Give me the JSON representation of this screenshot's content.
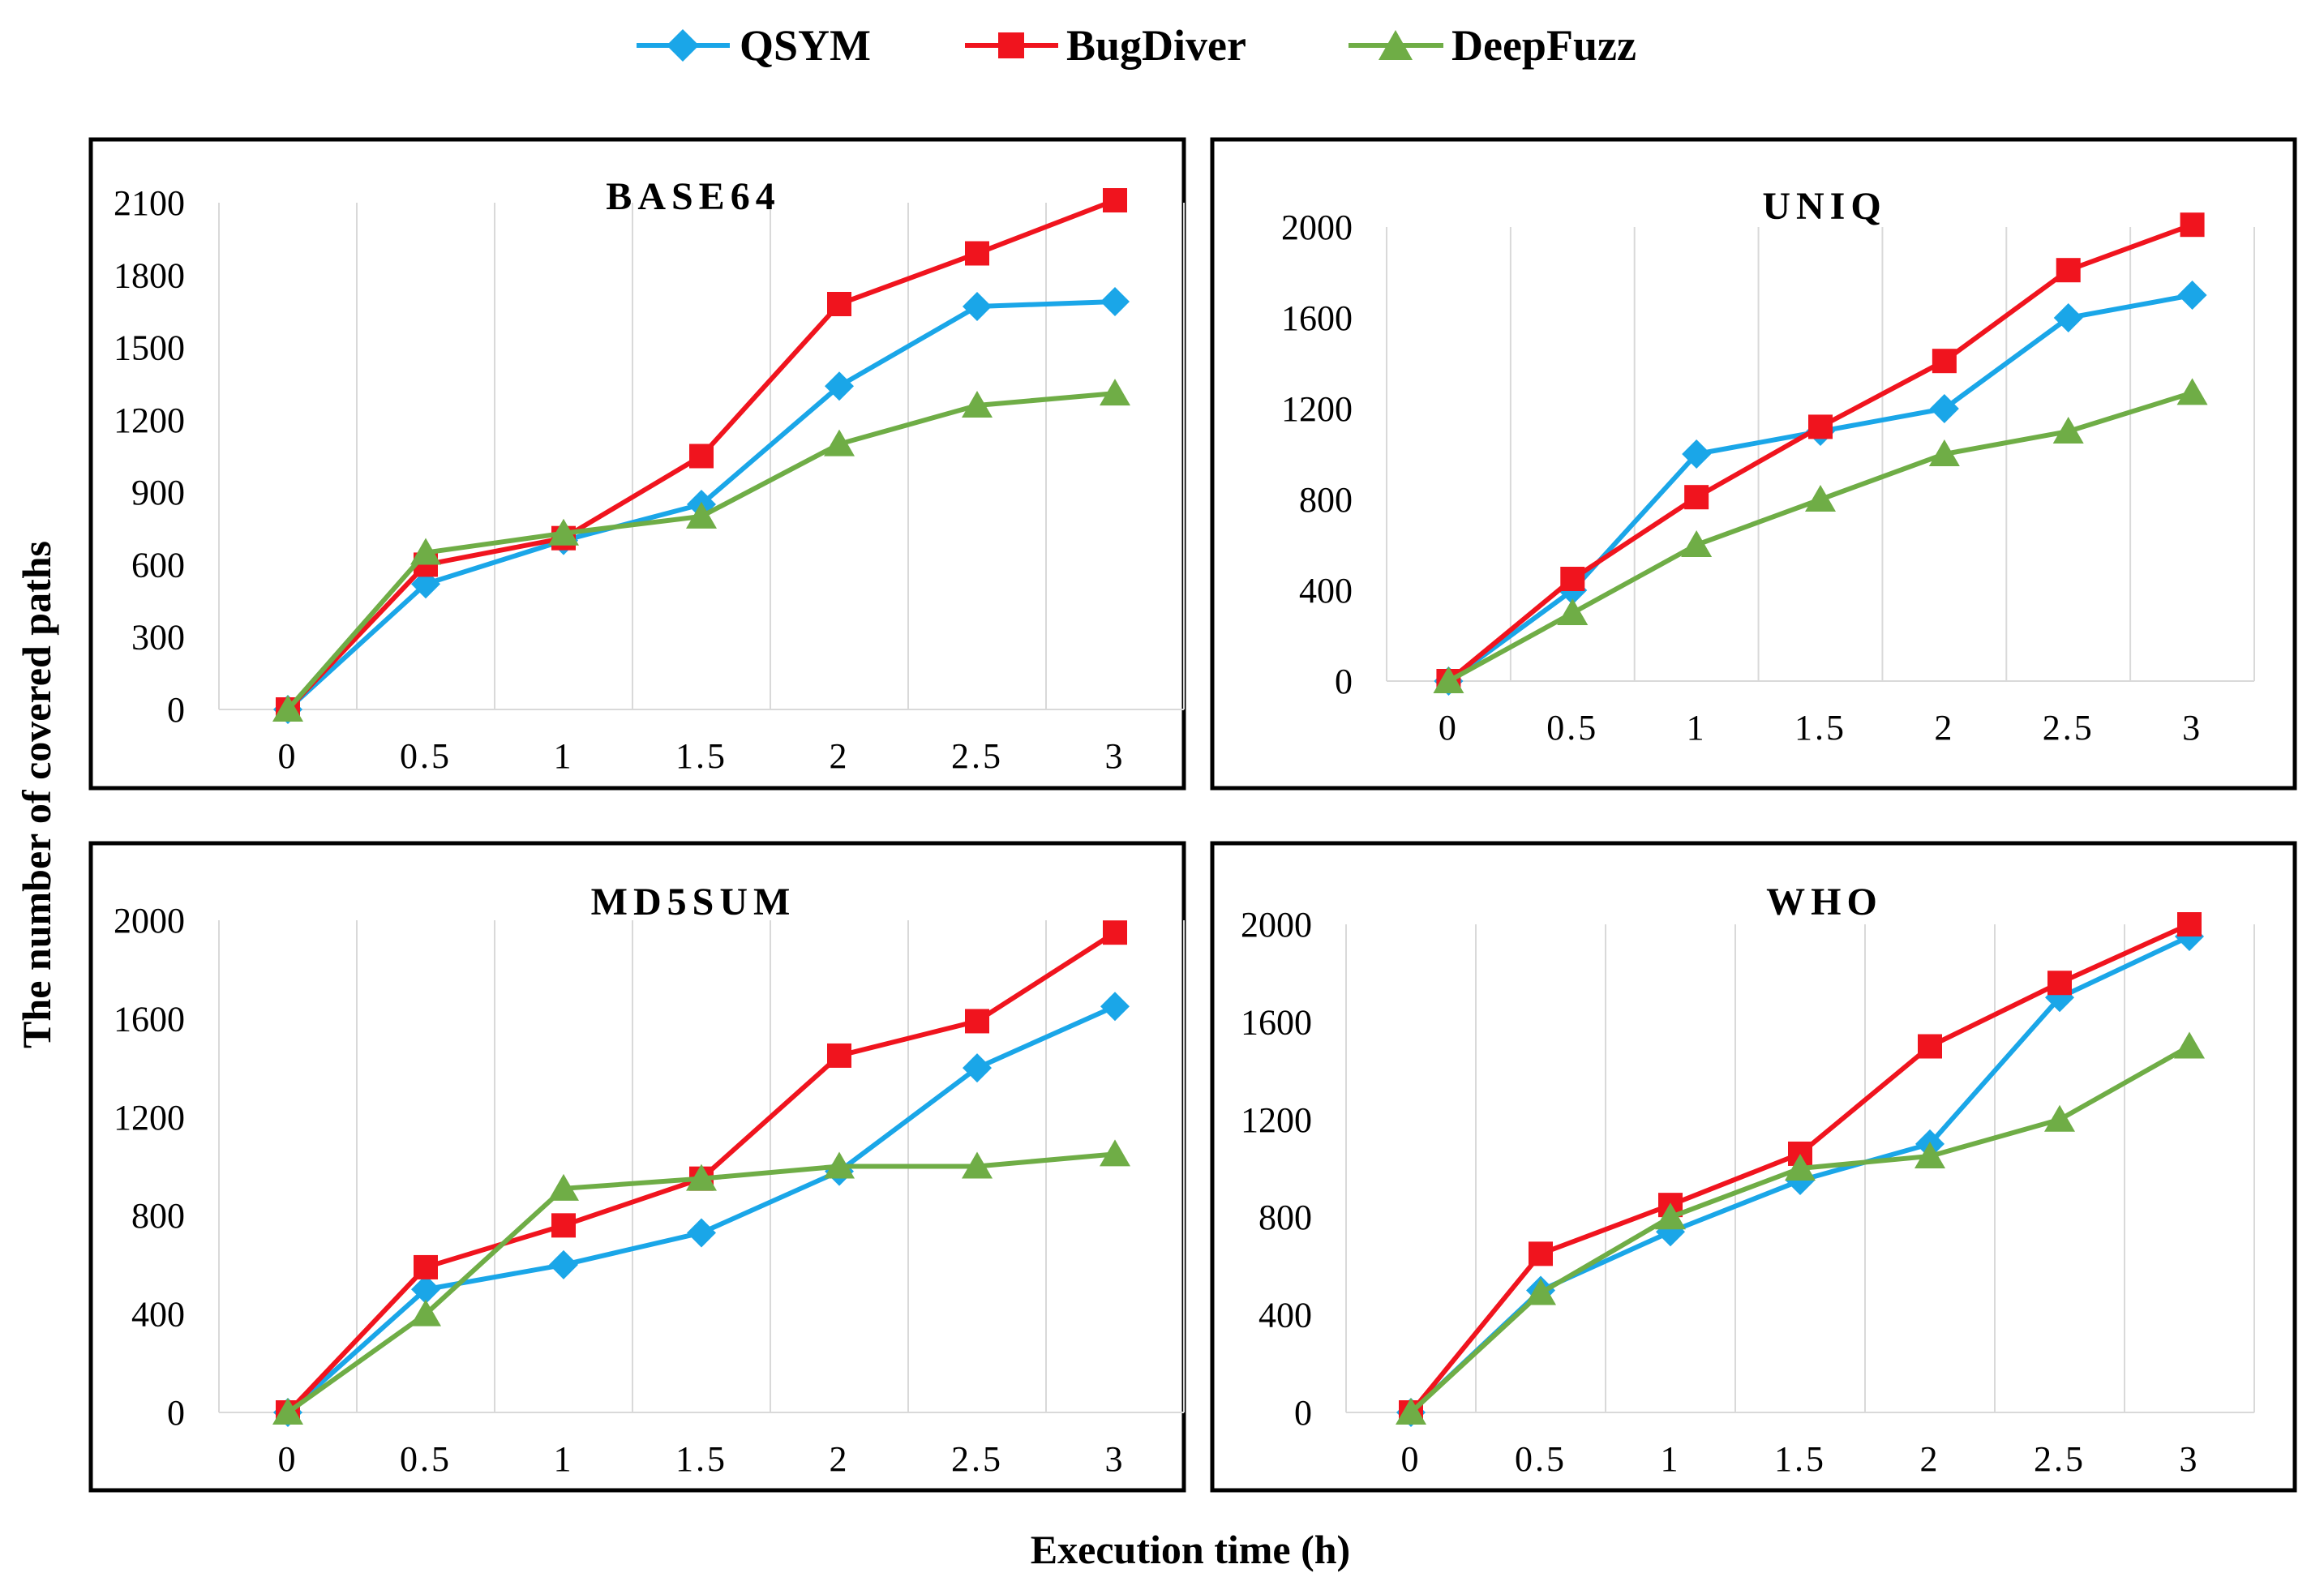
{
  "figure": {
    "y_label": "The number of covered paths",
    "x_label": "Execution time (h)"
  },
  "legend": [
    {
      "name": "QSYM",
      "color": "#1aa6e8",
      "marker": "diamond"
    },
    {
      "name": "BugDiver",
      "color": "#f0141e",
      "marker": "square"
    },
    {
      "name": "DeepFuzz",
      "color": "#6fad46",
      "marker": "triangle"
    }
  ],
  "chart_data": [
    {
      "type": "line",
      "title": "BASE64",
      "x": [
        0,
        0.5,
        1,
        1.5,
        2,
        2.5,
        3
      ],
      "x_tick_labels": [
        "0",
        "0.5",
        "1",
        "1.5",
        "2",
        "2.5",
        "3"
      ],
      "ylim": [
        0,
        2100
      ],
      "y_ticks": [
        0,
        300,
        600,
        900,
        1200,
        1500,
        1800,
        2100
      ],
      "series": [
        {
          "name": "QSYM",
          "values": [
            0,
            520,
            700,
            850,
            1340,
            1670,
            1690
          ]
        },
        {
          "name": "BugDiver",
          "values": [
            0,
            600,
            710,
            1050,
            1680,
            1890,
            2110
          ]
        },
        {
          "name": "DeepFuzz",
          "values": [
            0,
            650,
            730,
            800,
            1100,
            1260,
            1310
          ]
        }
      ]
    },
    {
      "type": "line",
      "title": "UNIQ",
      "x": [
        0,
        0.5,
        1,
        1.5,
        2,
        2.5,
        3
      ],
      "x_tick_labels": [
        "0",
        "0.5",
        "1",
        "1.5",
        "2",
        "2.5",
        "3"
      ],
      "ylim": [
        0,
        2000
      ],
      "y_ticks": [
        0,
        400,
        800,
        1200,
        1600,
        2000
      ],
      "series": [
        {
          "name": "QSYM",
          "values": [
            0,
            400,
            1000,
            1100,
            1200,
            1600,
            1700
          ]
        },
        {
          "name": "BugDiver",
          "values": [
            0,
            450,
            810,
            1120,
            1410,
            1810,
            2010
          ]
        },
        {
          "name": "DeepFuzz",
          "values": [
            0,
            300,
            600,
            800,
            1000,
            1100,
            1270
          ]
        }
      ]
    },
    {
      "type": "line",
      "title": "MD5SUM",
      "x": [
        0,
        0.5,
        1,
        1.5,
        2,
        2.5,
        3
      ],
      "x_tick_labels": [
        "0",
        "0.5",
        "1",
        "1.5",
        "2",
        "2.5",
        "3"
      ],
      "ylim": [
        0,
        2000
      ],
      "y_ticks": [
        0,
        400,
        800,
        1200,
        1600,
        2000
      ],
      "series": [
        {
          "name": "QSYM",
          "values": [
            0,
            500,
            600,
            730,
            980,
            1400,
            1650
          ]
        },
        {
          "name": "BugDiver",
          "values": [
            0,
            590,
            760,
            950,
            1450,
            1590,
            1950
          ]
        },
        {
          "name": "DeepFuzz",
          "values": [
            0,
            400,
            910,
            950,
            1000,
            1000,
            1050
          ]
        }
      ]
    },
    {
      "type": "line",
      "title": "WHO",
      "x": [
        0,
        0.5,
        1,
        1.5,
        2,
        2.5,
        3
      ],
      "x_tick_labels": [
        "0",
        "0.5",
        "1",
        "1.5",
        "2",
        "2.5",
        "3"
      ],
      "ylim": [
        0,
        2000
      ],
      "y_ticks": [
        0,
        400,
        800,
        1200,
        1600,
        2000
      ],
      "series": [
        {
          "name": "QSYM",
          "values": [
            0,
            500,
            740,
            950,
            1100,
            1700,
            1950
          ]
        },
        {
          "name": "BugDiver",
          "values": [
            0,
            650,
            850,
            1060,
            1500,
            1760,
            2000
          ]
        },
        {
          "name": "DeepFuzz",
          "values": [
            0,
            490,
            800,
            1000,
            1050,
            1200,
            1500
          ]
        }
      ]
    }
  ]
}
